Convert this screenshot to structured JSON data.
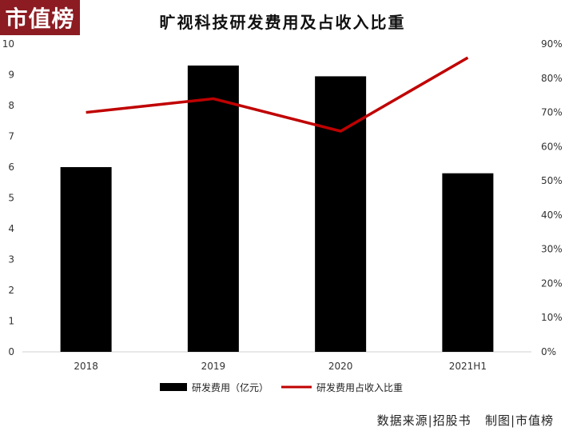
{
  "header": {
    "logo_text": "市值榜",
    "title": "旷视科技研发费用及占收入比重"
  },
  "footer": {
    "source": "数据来源|招股书",
    "credit": "制图|市值榜"
  },
  "colors": {
    "bar": "#000000",
    "line": "#c00000",
    "logo_bg": "#8c1c22"
  },
  "chart_data": {
    "type": "bar",
    "categories": [
      "2018",
      "2019",
      "2020",
      "2021H1"
    ],
    "series": [
      {
        "name": "研发费用（亿元）",
        "type": "bar",
        "axis": "left",
        "values": [
          6.0,
          9.3,
          8.95,
          5.8
        ]
      },
      {
        "name": "研发费用占收入比重",
        "type": "line",
        "axis": "right",
        "values": [
          0.7,
          0.74,
          0.645,
          0.86
        ]
      }
    ],
    "y_left": {
      "min": 0,
      "max": 10,
      "ticks": [
        "0",
        "1",
        "2",
        "3",
        "4",
        "5",
        "6",
        "7",
        "8",
        "9",
        "10"
      ]
    },
    "y_right": {
      "min": 0,
      "max": 0.9,
      "ticks": [
        "0%",
        "10%",
        "20%",
        "30%",
        "40%",
        "50%",
        "60%",
        "70%",
        "80%",
        "90%"
      ]
    },
    "grid": false,
    "legend_position": "bottom"
  }
}
